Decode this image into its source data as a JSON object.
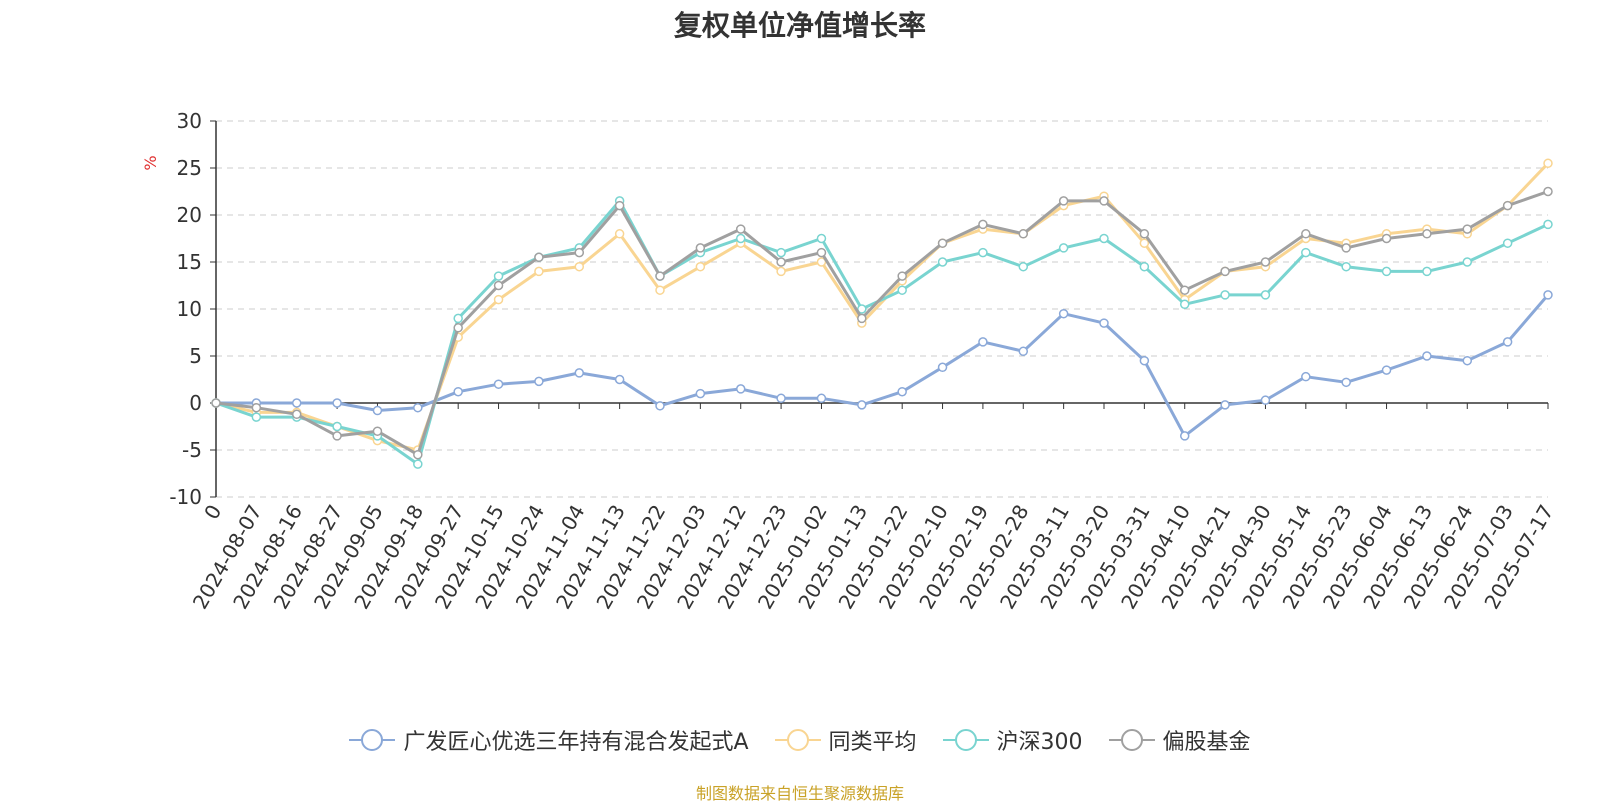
{
  "title": "复权单位净值增长率",
  "source": "制图数据来自恒生聚源数据库",
  "chart_data": {
    "type": "line",
    "title": "复权单位净值增长率",
    "ylabel": "%",
    "ylim": [
      -10,
      30
    ],
    "yticks": [
      30,
      25,
      20,
      15,
      10,
      5,
      0,
      -5,
      -10
    ],
    "grid": true,
    "legend_position": "bottom",
    "x_tick_labels": [
      "0",
      "2024-08-07",
      "2024-08-16",
      "2024-08-27",
      "2024-09-05",
      "2024-09-18",
      "2024-09-27",
      "2024-10-15",
      "2024-10-24",
      "2024-11-04",
      "2024-11-13",
      "2024-11-22",
      "2024-12-03",
      "2024-12-12",
      "2024-12-23",
      "2025-01-02",
      "2025-01-13",
      "2025-01-22",
      "2025-02-10",
      "2025-02-19",
      "2025-02-28",
      "2025-03-11",
      "2025-03-20",
      "2025-03-31",
      "2025-04-10",
      "2025-04-21",
      "2025-04-30",
      "2025-05-14",
      "2025-05-23",
      "2025-06-04",
      "2025-06-13",
      "2025-06-24",
      "2025-07-03",
      "2025-07-17"
    ],
    "series": [
      {
        "name": "广发匠心优选三年持有混合发起式A",
        "color": "#8aa8d8",
        "values": [
          0,
          0,
          0,
          0,
          -0.8,
          -0.5,
          1.2,
          2.0,
          2.3,
          3.2,
          2.5,
          -0.3,
          1.0,
          1.5,
          0.5,
          0.5,
          -0.2,
          1.2,
          3.8,
          6.5,
          5.5,
          9.5,
          8.5,
          4.5,
          -3.5,
          -0.2,
          0.3,
          2.8,
          2.2,
          3.5,
          5.0,
          4.5,
          6.5,
          11.5
        ]
      },
      {
        "name": "同类平均",
        "color": "#f9d592",
        "values": [
          0,
          -1.0,
          -1.0,
          -2.5,
          -4.0,
          -5.0,
          7.0,
          11.0,
          14.0,
          14.5,
          18.0,
          12.0,
          14.5,
          17.0,
          14.0,
          15.0,
          8.5,
          13.0,
          17.0,
          18.5,
          18.0,
          21.0,
          22.0,
          17.0,
          11.0,
          14.0,
          14.5,
          17.5,
          17.0,
          18.0,
          18.5,
          18.0,
          21.0,
          25.5
        ]
      },
      {
        "name": "沪深300",
        "color": "#79d4d0",
        "values": [
          0,
          -1.5,
          -1.5,
          -2.5,
          -3.5,
          -6.5,
          9.0,
          13.5,
          15.5,
          16.5,
          21.5,
          13.5,
          16.0,
          17.5,
          16.0,
          17.5,
          10.0,
          12.0,
          15.0,
          16.0,
          14.5,
          16.5,
          17.5,
          14.5,
          10.5,
          11.5,
          11.5,
          16.0,
          14.5,
          14.0,
          14.0,
          15.0,
          17.0,
          19.0
        ]
      },
      {
        "name": "偏股基金",
        "color": "#a0a0a0",
        "values": [
          0,
          -0.5,
          -1.2,
          -3.5,
          -3.0,
          -5.5,
          8.0,
          12.5,
          15.5,
          16.0,
          21.0,
          13.5,
          16.5,
          18.5,
          15.0,
          16.0,
          9.0,
          13.5,
          17.0,
          19.0,
          18.0,
          21.5,
          21.5,
          18.0,
          12.0,
          14.0,
          15.0,
          18.0,
          16.5,
          17.5,
          18.0,
          18.5,
          21.0,
          22.5
        ]
      }
    ]
  }
}
